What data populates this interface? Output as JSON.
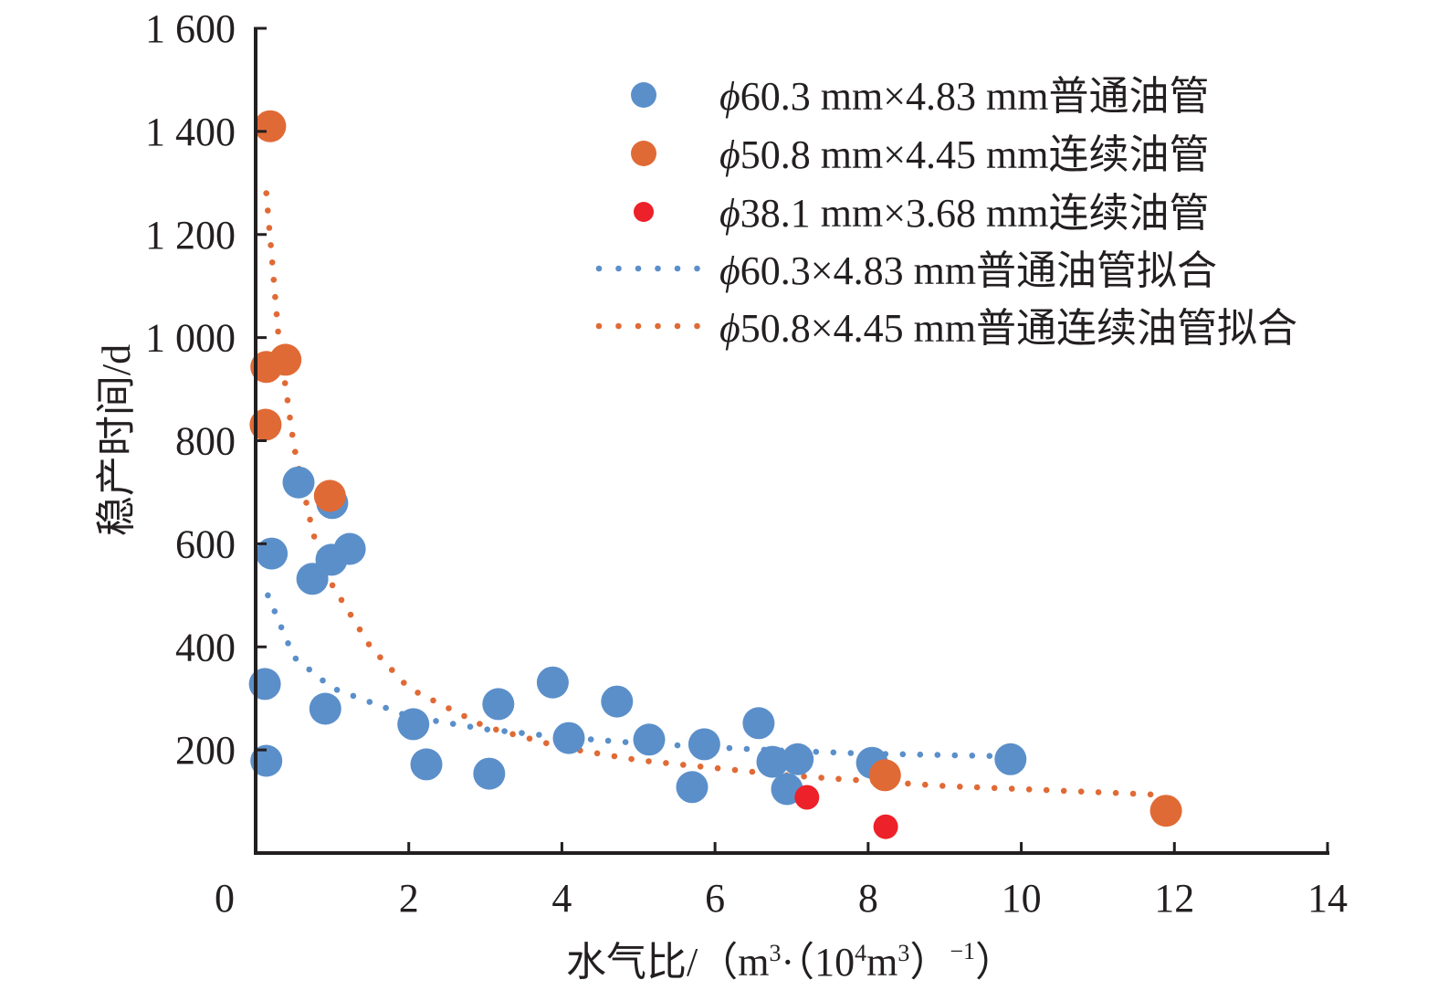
{
  "chart_data": {
    "type": "scatter",
    "title": "",
    "xlabel": "水气比/（m³·（10⁴m³）⁻¹）",
    "xlabel_parts": {
      "main": "水气比/（m",
      "sup1": "3",
      "mid": "·（10",
      "sup2": "4",
      "mid2": "m",
      "sup3": "3",
      "end": "）",
      "sup4": "−1",
      "close": "）"
    },
    "ylabel": "稳产时间/d",
    "xlim": [
      0,
      14
    ],
    "ylim": [
      0,
      1600
    ],
    "xticks": [
      0,
      2,
      4,
      6,
      8,
      10,
      12,
      14
    ],
    "xtick_labels": [
      "0",
      "2",
      "4",
      "6",
      "8",
      "10",
      "12",
      "14"
    ],
    "yticks": [
      200,
      400,
      600,
      800,
      1000,
      1200,
      1400,
      1600
    ],
    "ytick_labels": [
      "200",
      "400",
      "600",
      "800",
      "1 000",
      "1 200",
      "1 400",
      "1 600"
    ],
    "grid": false,
    "legend_position": "top-right",
    "series": [
      {
        "name": "ϕ60.3 mm×4.83 mm普通油管",
        "phi": "ϕ",
        "label_rest": "60.3 mm×4.83 mm普通油管",
        "kind": "scatter",
        "color": "#5b8fca",
        "marker": "large",
        "points": [
          [
            0.56,
            719
          ],
          [
            1.0,
            679
          ],
          [
            0.21,
            581
          ],
          [
            0.99,
            569
          ],
          [
            1.23,
            590
          ],
          [
            0.74,
            532
          ],
          [
            0.12,
            328
          ],
          [
            0.91,
            280
          ],
          [
            0.14,
            179
          ],
          [
            2.06,
            250
          ],
          [
            2.23,
            172
          ],
          [
            3.05,
            154
          ],
          [
            3.17,
            289
          ],
          [
            3.88,
            331
          ],
          [
            4.09,
            223
          ],
          [
            4.72,
            294
          ],
          [
            5.14,
            220
          ],
          [
            5.7,
            128
          ],
          [
            5.86,
            211
          ],
          [
            6.57,
            252
          ],
          [
            6.75,
            177
          ],
          [
            7.08,
            182
          ],
          [
            6.94,
            124
          ],
          [
            8.05,
            175
          ],
          [
            9.86,
            182
          ]
        ]
      },
      {
        "name": "ϕ50.8 mm×4.45 mm连续油管",
        "phi": "ϕ",
        "label_rest": "50.8 mm×4.45 mm连续油管",
        "kind": "scatter",
        "color": "#e06a35",
        "marker": "large",
        "points": [
          [
            0.19,
            1410
          ],
          [
            0.39,
            957
          ],
          [
            0.14,
            943
          ],
          [
            0.13,
            831
          ],
          [
            0.97,
            693
          ],
          [
            8.22,
            151
          ],
          [
            11.89,
            82
          ]
        ]
      },
      {
        "name": "ϕ38.1 mm×3.68 mm连续油管",
        "phi": "ϕ",
        "label_rest": "38.1 mm×3.68 mm连续油管",
        "kind": "scatter",
        "color": "#ec2129",
        "marker": "small",
        "points": [
          [
            7.2,
            108
          ],
          [
            8.23,
            51
          ]
        ]
      },
      {
        "name": "ϕ60.3×4.83 mm普通油管拟合",
        "phi": "ϕ",
        "label_rest": "60.3×4.83 mm普通油管拟合",
        "kind": "fit-dotted",
        "color": "#5b8fca",
        "x_range": [
          0.16,
          9.7
        ],
        "points": [
          [
            0.16,
            500
          ],
          [
            0.5,
            380
          ],
          [
            1.0,
            320
          ],
          [
            2.0,
            265
          ],
          [
            3.0,
            240
          ],
          [
            4.0,
            225
          ],
          [
            5.0,
            213
          ],
          [
            6.0,
            205
          ],
          [
            7.0,
            198
          ],
          [
            8.0,
            193
          ],
          [
            9.7,
            188
          ]
        ]
      },
      {
        "name": "ϕ50.8×4.45 mm普通连续油管拟合",
        "phi": "ϕ",
        "label_rest": "50.8×4.45 mm普通连续油管拟合",
        "kind": "fit-dotted",
        "color": "#e06a35",
        "x_range": [
          0.14,
          11.8
        ],
        "points": [
          [
            0.14,
            1280
          ],
          [
            0.3,
            1000
          ],
          [
            0.5,
            790
          ],
          [
            0.75,
            620
          ],
          [
            1.0,
            520
          ],
          [
            1.5,
            400
          ],
          [
            2.0,
            320
          ],
          [
            3.0,
            245
          ],
          [
            4.0,
            205
          ],
          [
            5.0,
            180
          ],
          [
            6.0,
            165
          ],
          [
            7.0,
            150
          ],
          [
            8.0,
            140
          ],
          [
            9.0,
            130
          ],
          [
            10.0,
            124
          ],
          [
            11.0,
            118
          ],
          [
            11.8,
            113
          ]
        ]
      }
    ]
  }
}
